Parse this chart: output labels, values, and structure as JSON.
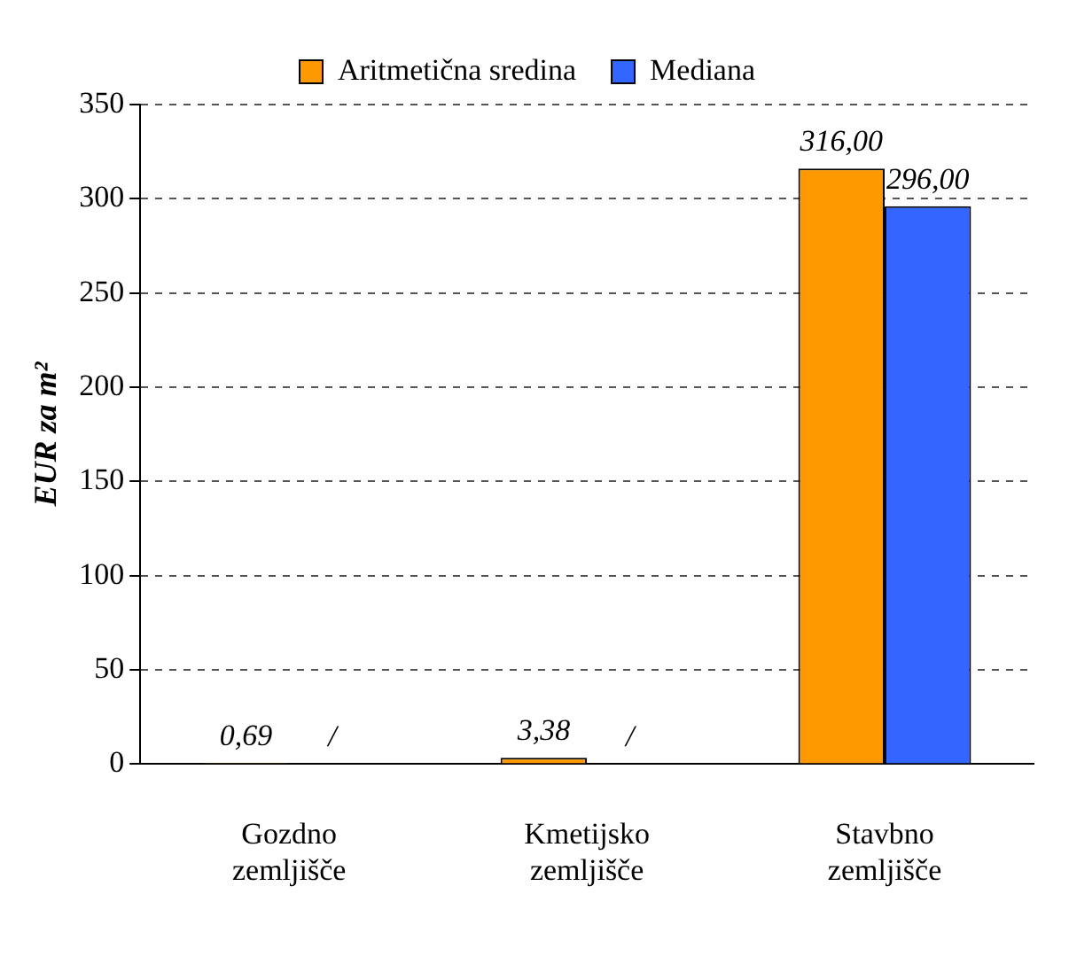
{
  "chart_data": {
    "type": "bar",
    "categories": [
      "Gozdno zemljišče",
      "Kmetijsko zemljišče",
      "Stavbno zemljišče"
    ],
    "series": [
      {
        "name": "Aritmetična sredina",
        "color": "#ff9900",
        "values": [
          0.69,
          3.38,
          316
        ],
        "value_labels": [
          "0,69",
          "3,38",
          "316,00"
        ]
      },
      {
        "name": "Mediana",
        "color": "#3366ff",
        "values": [
          null,
          null,
          296
        ],
        "value_labels": [
          "/",
          "/",
          "296,00"
        ]
      }
    ],
    "ylabel": "EUR za m²",
    "ylim": [
      0,
      350
    ],
    "yticks": [
      0,
      50,
      100,
      150,
      200,
      250,
      300,
      350
    ],
    "grid": "y",
    "legend": "top"
  }
}
